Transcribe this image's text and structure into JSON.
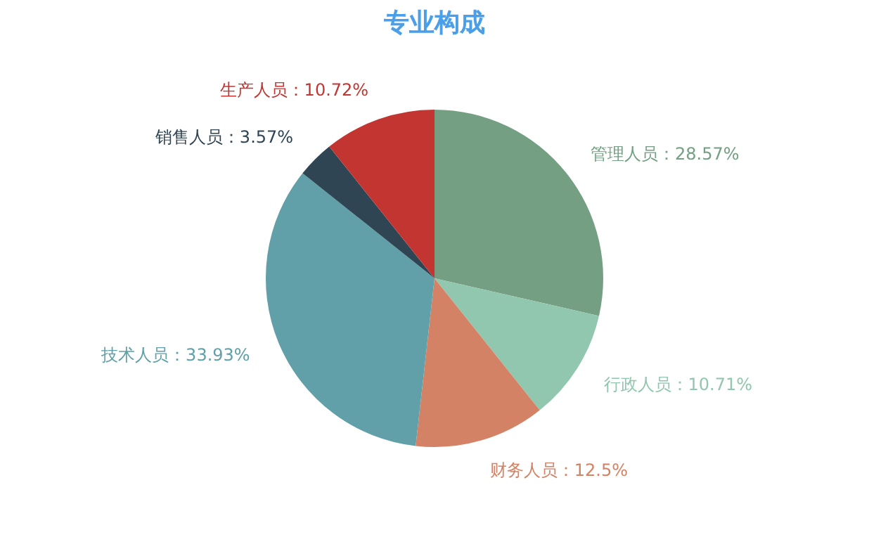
{
  "chart_data": {
    "type": "pie",
    "title": "专业构成",
    "categories": [
      "管理人员",
      "行政人员",
      "财务人员",
      "技术人员",
      "销售人员",
      "生产人员"
    ],
    "values": [
      28.57,
      10.71,
      12.5,
      33.93,
      3.57,
      10.72
    ],
    "colors": [
      "#749f83",
      "#91c7ae",
      "#d48265",
      "#61a0a8",
      "#2f4554",
      "#c23531"
    ],
    "value_labels": [
      "28.57%",
      "10.71%",
      "12.5%",
      "33.93%",
      "3.57%",
      "10.72%"
    ],
    "legend": false
  }
}
